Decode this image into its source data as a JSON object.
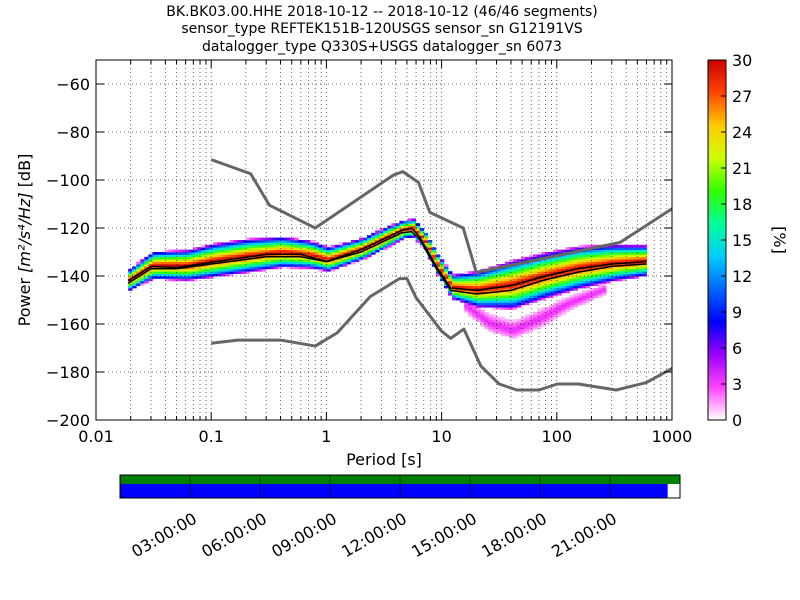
{
  "title_lines": [
    "BK.BK03.00.HHE   2018-10-12 -- 2018-10-12  (46/46 segments)",
    "sensor_type REFTEK151B-120USGS sensor_sn G12191VS",
    "datalogger_type Q330S+USGS datalogger_sn 6073"
  ],
  "colorbar": {
    "label": "[%]",
    "ticks": [
      "0",
      "3",
      "6",
      "9",
      "12",
      "15",
      "18",
      "21",
      "24",
      "27",
      "30"
    ],
    "range": [
      0,
      30
    ],
    "colormap": [
      "#ffffff",
      "#ff44ff",
      "#9900ff",
      "#0000ff",
      "#0066ff",
      "#00ccff",
      "#00ff99",
      "#33ff00",
      "#ccff00",
      "#ffcc00",
      "#ff4400",
      "#cc0000"
    ]
  },
  "timeline": {
    "tick_labels": [
      "03:00:00",
      "06:00:00",
      "09:00:00",
      "12:00:00",
      "15:00:00",
      "18:00:00",
      "21:00:00"
    ],
    "top_bar_color": "#008000",
    "bottom_bar_color": "#0000ff",
    "coverage_fraction": 0.978
  },
  "chart_data": {
    "type": "heatmap",
    "xlabel": "Period [s]",
    "ylabel_prefix": "Power ",
    "ylabel_units": "[m²/s⁴/Hz]",
    "ylabel_suffix": " [dB]",
    "xscale": "log",
    "xlim": [
      0.01,
      1000
    ],
    "ylim": [
      -200,
      -50
    ],
    "grid": true,
    "x_ticks": [
      {
        "value": 0.01,
        "label": "0.01"
      },
      {
        "value": 0.1,
        "label": "0.1"
      },
      {
        "value": 1,
        "label": "1"
      },
      {
        "value": 10,
        "label": "10"
      },
      {
        "value": 100,
        "label": "100"
      },
      {
        "value": 1000,
        "label": "1000"
      }
    ],
    "y_ticks": [
      {
        "value": -200,
        "label": "−200"
      },
      {
        "value": -180,
        "label": "−180"
      },
      {
        "value": -160,
        "label": "−160"
      },
      {
        "value": -140,
        "label": "−140"
      },
      {
        "value": -120,
        "label": "−120"
      },
      {
        "value": -100,
        "label": "−100"
      },
      {
        "value": -80,
        "label": "−80"
      },
      {
        "value": -60,
        "label": "−60"
      }
    ],
    "nhnm": [
      [
        0.1,
        -91.5
      ],
      [
        0.22,
        -97.4
      ],
      [
        0.32,
        -110.5
      ],
      [
        0.8,
        -120.0
      ],
      [
        3.8,
        -98.0
      ],
      [
        4.6,
        -96.5
      ],
      [
        6.3,
        -101.0
      ],
      [
        7.9,
        -113.5
      ],
      [
        15.4,
        -120.0
      ],
      [
        20.0,
        -138.5
      ],
      [
        354.8,
        -126.0
      ],
      [
        1000,
        -112.0
      ]
    ],
    "nlnm": [
      [
        0.1,
        -168.0
      ],
      [
        0.17,
        -166.7
      ],
      [
        0.4,
        -166.7
      ],
      [
        0.8,
        -169.2
      ],
      [
        1.24,
        -163.7
      ],
      [
        2.4,
        -148.6
      ],
      [
        4.3,
        -141.1
      ],
      [
        5.0,
        -141.1
      ],
      [
        6.0,
        -149.0
      ],
      [
        10.0,
        -163.0
      ],
      [
        12.0,
        -166.0
      ],
      [
        15.6,
        -162.1
      ],
      [
        21.9,
        -177.5
      ],
      [
        31.6,
        -185.0
      ],
      [
        45.0,
        -187.5
      ],
      [
        70.0,
        -187.5
      ],
      [
        101.0,
        -185.0
      ],
      [
        154.0,
        -185.0
      ],
      [
        328.0,
        -187.5
      ],
      [
        600.0,
        -184.4
      ],
      [
        1000.0,
        -178.5
      ]
    ],
    "mode_curve": [
      [
        0.019,
        -142
      ],
      [
        0.022,
        -140
      ],
      [
        0.03,
        -136
      ],
      [
        0.05,
        -136.5
      ],
      [
        0.08,
        -135
      ],
      [
        0.15,
        -133
      ],
      [
        0.3,
        -131
      ],
      [
        0.6,
        -131
      ],
      [
        1.0,
        -134
      ],
      [
        2.0,
        -129
      ],
      [
        3.0,
        -125
      ],
      [
        4.5,
        -121
      ],
      [
        5.5,
        -120
      ],
      [
        6.5,
        -124
      ],
      [
        9.0,
        -136
      ],
      [
        12.0,
        -145
      ],
      [
        20.0,
        -146
      ],
      [
        40.0,
        -144
      ],
      [
        80.0,
        -140
      ],
      [
        150.0,
        -137
      ],
      [
        300.0,
        -135
      ],
      [
        600.0,
        -134
      ]
    ],
    "mean_curve": [
      [
        0.019,
        -143
      ],
      [
        0.03,
        -137
      ],
      [
        0.05,
        -137
      ],
      [
        0.1,
        -135
      ],
      [
        0.3,
        -132
      ],
      [
        0.6,
        -132
      ],
      [
        1.0,
        -134
      ],
      [
        2.0,
        -130
      ],
      [
        3.0,
        -126
      ],
      [
        4.5,
        -122
      ],
      [
        5.5,
        -121.5
      ],
      [
        6.5,
        -125
      ],
      [
        9.0,
        -137
      ],
      [
        12.0,
        -146
      ],
      [
        20.0,
        -147.5
      ],
      [
        40.0,
        -146
      ],
      [
        80.0,
        -141.5
      ],
      [
        150.0,
        -138.5
      ],
      [
        300.0,
        -136
      ],
      [
        600.0,
        -135
      ]
    ],
    "density_band": [
      {
        "period": 0.019,
        "center": -142,
        "width": 7
      },
      {
        "period": 0.03,
        "center": -136,
        "width": 9
      },
      {
        "period": 0.06,
        "center": -136,
        "width": 10
      },
      {
        "period": 0.1,
        "center": -134,
        "width": 11
      },
      {
        "period": 0.2,
        "center": -132,
        "width": 11
      },
      {
        "period": 0.4,
        "center": -130.5,
        "width": 10
      },
      {
        "period": 0.7,
        "center": -131.5,
        "width": 9
      },
      {
        "period": 1.0,
        "center": -133.5,
        "width": 8
      },
      {
        "period": 2.0,
        "center": -129,
        "width": 7
      },
      {
        "period": 3.0,
        "center": -125,
        "width": 7
      },
      {
        "period": 4.5,
        "center": -121,
        "width": 6
      },
      {
        "period": 5.5,
        "center": -120.5,
        "width": 6
      },
      {
        "period": 7.0,
        "center": -126,
        "width": 6
      },
      {
        "period": 9.0,
        "center": -136,
        "width": 7
      },
      {
        "period": 12.0,
        "center": -145,
        "width": 8
      },
      {
        "period": 20.0,
        "center": -146,
        "width": 12
      },
      {
        "period": 40.0,
        "center": -144,
        "width": 16
      },
      {
        "period": 80.0,
        "center": -140,
        "width": 15
      },
      {
        "period": 150.0,
        "center": -137,
        "width": 14
      },
      {
        "period": 300.0,
        "center": -135,
        "width": 12
      },
      {
        "period": 600.0,
        "center": -134,
        "width": 10
      }
    ],
    "low_tail": [
      {
        "period": 15.0,
        "center": -152,
        "width": 8
      },
      {
        "period": 25.0,
        "center": -160,
        "width": 10
      },
      {
        "period": 40.0,
        "center": -163,
        "width": 10
      },
      {
        "period": 70.0,
        "center": -158,
        "width": 10
      },
      {
        "period": 120.0,
        "center": -152,
        "width": 8
      },
      {
        "period": 250.0,
        "center": -146,
        "width": 6
      }
    ]
  }
}
